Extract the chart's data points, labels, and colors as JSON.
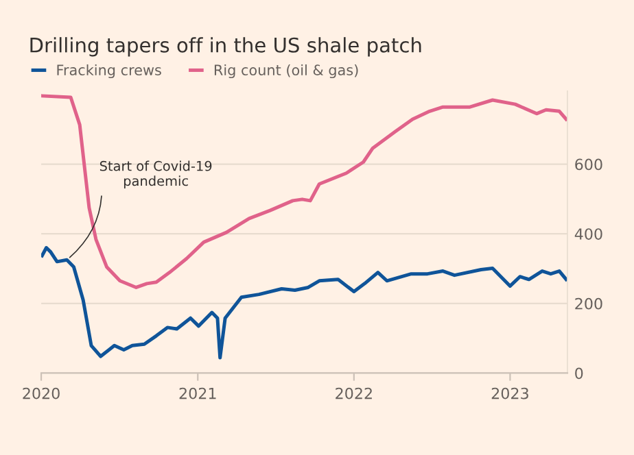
{
  "chart_data": {
    "type": "line",
    "title": "Drilling tapers off in the US shale patch",
    "series": [
      {
        "name": "Fracking crews",
        "color": "#0f5499",
        "x": [
          "2020-01-03",
          "2020-01-13",
          "2020-01-23",
          "2020-02-07",
          "2020-03-01",
          "2020-03-17",
          "2020-04-08",
          "2020-04-27",
          "2020-05-19",
          "2020-06-20",
          "2020-07-12",
          "2020-08-01",
          "2020-08-29",
          "2020-09-26",
          "2020-10-22",
          "2020-11-13",
          "2020-12-15",
          "2021-01-03",
          "2021-02-03",
          "2021-02-16",
          "2021-02-22",
          "2021-03-06",
          "2021-04-13",
          "2021-05-24",
          "2021-07-16",
          "2021-08-16",
          "2021-09-16",
          "2021-10-12",
          "2021-11-25",
          "2022-01-01",
          "2022-01-26",
          "2022-02-26",
          "2022-03-19",
          "2022-05-15",
          "2022-06-22",
          "2022-07-28",
          "2022-08-24",
          "2022-10-25",
          "2022-11-21",
          "2023-01-01",
          "2023-01-24",
          "2023-02-14",
          "2023-03-17",
          "2023-04-06",
          "2023-04-26",
          "2023-05-12"
        ],
        "values": [
          337,
          360,
          348,
          320,
          325,
          305,
          210,
          79,
          48,
          79,
          67,
          79,
          83,
          107,
          131,
          127,
          158,
          135,
          174,
          158,
          44,
          158,
          218,
          226,
          242,
          238,
          246,
          265,
          269,
          234,
          257,
          289,
          265,
          285,
          285,
          293,
          281,
          297,
          301,
          250,
          277,
          269,
          293,
          285,
          293,
          269
        ]
      },
      {
        "name": "Rig count (oil & gas)",
        "color": "#e0628a",
        "x": [
          "2020-01-03",
          "2020-03-10",
          "2020-03-31",
          "2020-04-22",
          "2020-05-08",
          "2020-06-02",
          "2020-07-03",
          "2020-08-10",
          "2020-09-04",
          "2020-09-26",
          "2020-10-27",
          "2020-12-06",
          "2021-01-15",
          "2021-03-09",
          "2021-05-01",
          "2021-06-19",
          "2021-08-11",
          "2021-09-02",
          "2021-09-21",
          "2021-10-12",
          "2021-12-14",
          "2022-01-23",
          "2022-02-14",
          "2022-04-07",
          "2022-05-18",
          "2022-06-27",
          "2022-07-28",
          "2022-09-29",
          "2022-11-21",
          "2023-01-13",
          "2023-03-04",
          "2023-03-26",
          "2023-04-26",
          "2023-05-12"
        ],
        "values": [
          796,
          792,
          713,
          475,
          384,
          305,
          265,
          246,
          257,
          261,
          289,
          329,
          376,
          404,
          444,
          467,
          495,
          499,
          495,
          543,
          574,
          606,
          646,
          693,
          729,
          752,
          764,
          764,
          784,
          772,
          745,
          756,
          752,
          729
        ]
      }
    ],
    "xlim": [
      "2020-01-01",
      "2023-05-15"
    ],
    "xticks": [
      {
        "value": "2020-01-01",
        "label": "2020"
      },
      {
        "value": "2021-01-01",
        "label": "2021"
      },
      {
        "value": "2022-01-01",
        "label": "2022"
      },
      {
        "value": "2023-01-01",
        "label": "2023"
      }
    ],
    "ylim": [
      0,
      810
    ],
    "yticks": [
      0,
      200,
      400,
      600
    ],
    "grid": "y",
    "legend": "top left",
    "annotations": [
      {
        "text": "Start of Covid-19\npandemic",
        "x": "2020-03-01",
        "y": 325
      }
    ]
  }
}
